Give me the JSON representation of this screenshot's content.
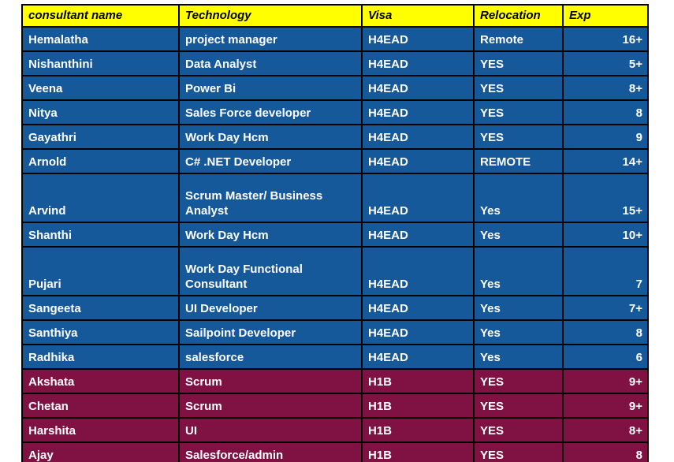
{
  "table": {
    "colors": {
      "header_bg": "#ffff00",
      "h4ead_row_bg": "#15599b",
      "h1b_row_bg": "#7f1243",
      "border": "#000000",
      "header_text": "#000000",
      "cell_text": "#ffffff",
      "canvas_bg": "#ffffff"
    },
    "columns": [
      {
        "label": "consultant name"
      },
      {
        "label": "Technology"
      },
      {
        "label": "Visa"
      },
      {
        "label": "Relocation"
      },
      {
        "label": "Exp"
      }
    ],
    "rows": [
      {
        "name": "Hemalatha",
        "technology": "project manager",
        "visa": "H4EAD",
        "relocation": "Remote",
        "exp": "16+"
      },
      {
        "name": "Nishanthini",
        "technology": "Data Analyst",
        "visa": "H4EAD",
        "relocation": "YES",
        "exp": "5+"
      },
      {
        "name": "Veena",
        "technology": "Power Bi",
        "visa": "H4EAD",
        "relocation": "YES",
        "exp": "8+"
      },
      {
        "name": "Nitya",
        "technology": "Sales Force developer",
        "visa": "H4EAD",
        "relocation": "YES",
        "exp": "8"
      },
      {
        "name": "Gayathri",
        "technology": "Work Day Hcm",
        "visa": "H4EAD",
        "relocation": "YES",
        "exp": "9"
      },
      {
        "name": "Arnold",
        "technology": "C# .NET Developer",
        "visa": "H4EAD",
        "relocation": "REMOTE",
        "exp": "14+"
      },
      {
        "name": "Arvind",
        "technology": "Scrum Master/ Business Analyst",
        "visa": "H4EAD",
        "relocation": "Yes",
        "exp": "15+"
      },
      {
        "name": "Shanthi",
        "technology": "Work Day Hcm",
        "visa": "H4EAD",
        "relocation": "Yes",
        "exp": "10+"
      },
      {
        "name": "Pujari",
        "technology": "Work Day Functional Consultant",
        "visa": "H4EAD",
        "relocation": "Yes",
        "exp": "7"
      },
      {
        "name": "Sangeeta",
        "technology": "UI Developer",
        "visa": "H4EAD",
        "relocation": "Yes",
        "exp": "7+"
      },
      {
        "name": "Santhiya",
        "technology": "Sailpoint Developer",
        "visa": "H4EAD",
        "relocation": "Yes",
        "exp": "8"
      },
      {
        "name": "Radhika",
        "technology": "salesforce",
        "visa": "H4EAD",
        "relocation": "Yes",
        "exp": "6"
      },
      {
        "name": "Akshata",
        "technology": "Scrum",
        "visa": "H1B",
        "relocation": "YES",
        "exp": "9+"
      },
      {
        "name": "Chetan",
        "technology": "Scrum",
        "visa": "H1B",
        "relocation": "YES",
        "exp": "9+"
      },
      {
        "name": "Harshita",
        "technology": "UI",
        "visa": "H1B",
        "relocation": "YES",
        "exp": "8+"
      },
      {
        "name": "Ajay",
        "technology": "Salesforce/admin",
        "visa": "H1B",
        "relocation": "YES",
        "exp": "8"
      }
    ]
  }
}
